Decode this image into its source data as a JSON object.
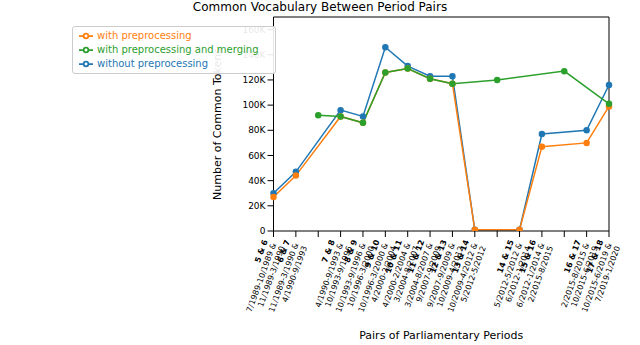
{
  "chart_data": {
    "type": "line",
    "title": "Common Vocabulary Between Period Pairs",
    "x_label": "Pairs of Parliamentary Periods",
    "y_label": "Number of Common Tokens",
    "categories": [
      "5 & 6\n7/1989-10/1989 &\n11/1989-3/1990",
      "6 & 7\n11/1989-3/1990 &\n4/1990-9/1993",
      null,
      "7 & 8\n4/1990-9/1993 &\n10/1993-9/1996",
      "8 & 9\n10/1993-9/1996 &\n10/1996-3/2000",
      "9 & 10\n10/1996-3/2000 &\n4/2000-2/2004",
      "10 & 11\n4/2000-2/2004 &\n3/2004-8/2007",
      "11 & 12\n3/2004-8/2007 &\n9/2007-9/2009",
      "12 & 13\n9/2007-9/2009 &\n10/2009-4/2012",
      "13 & 14\n10/2009-4/2012 &\n5/2012-5/2012",
      null,
      "14 & 15\n5/2012-5/2012 &\n6/2012-1/2014",
      "15 & 16\n6/2012-1/2014 &\n2/2015-8/2015",
      null,
      "16 & 17\n2/2015-8/2015 &\n10/2015-6/2019",
      "17 & 18\n10/2015-6/2019 &\n7/2019-1/2020"
    ],
    "series": [
      {
        "name": "without preprocessing",
        "color": "#1f77b4",
        "marker": "o",
        "values": [
          30000,
          47000,
          null,
          96000,
          91000,
          146000,
          131000,
          123000,
          123000,
          1000,
          null,
          1000,
          77000,
          null,
          80000,
          116000
        ]
      },
      {
        "name": "with preprocessing",
        "color": "#ff7f0e",
        "marker": "o",
        "values": [
          27000,
          44000,
          null,
          91000,
          86000,
          126000,
          129000,
          121000,
          117000,
          1000,
          null,
          1000,
          67000,
          null,
          70000,
          99000
        ]
      },
      {
        "name": "with preprocessing and merging",
        "color": "#2ca02c",
        "marker": "o",
        "values": [
          null,
          null,
          92000,
          91000,
          86000,
          126000,
          129000,
          121000,
          117000,
          null,
          120000,
          null,
          null,
          127000,
          null,
          101000
        ]
      }
    ],
    "ylim": [
      0,
      170000
    ],
    "yticks": [
      0,
      {
        "value": 20000,
        "label": "20K"
      },
      {
        "value": 40000,
        "label": "40K"
      },
      {
        "value": 60000,
        "label": "60K"
      },
      {
        "value": 80000,
        "label": "80K"
      },
      {
        "value": 100000,
        "label": "100K"
      },
      {
        "value": 120000,
        "label": "120K"
      },
      {
        "value": 140000,
        "label": "140K"
      },
      {
        "value": 160000,
        "label": "160K"
      }
    ],
    "grid": false,
    "legend": "upper left"
  }
}
